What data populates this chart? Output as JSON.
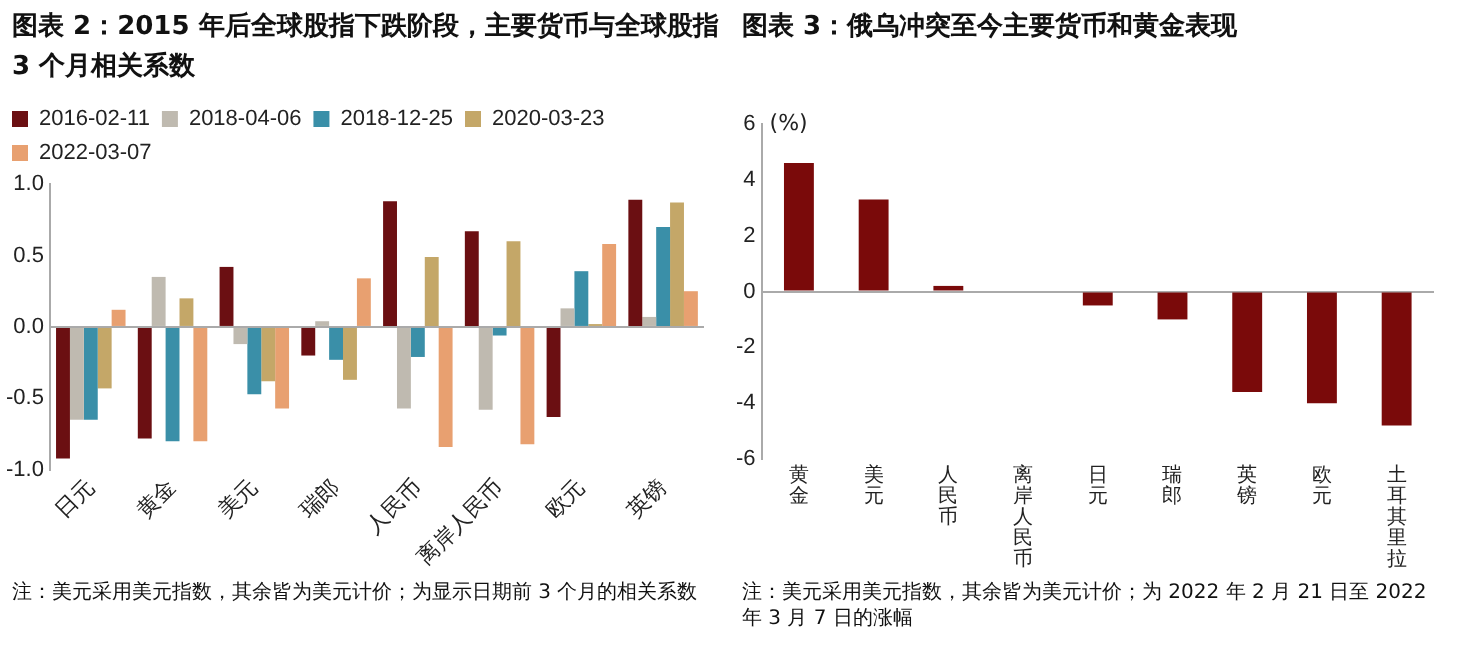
{
  "chart_data": [
    {
      "type": "bar",
      "title": "图表 2：2015 年后全球股指下跌阶段，主要货币与全球股指 3 个月相关系数",
      "categories": [
        "日元",
        "黄金",
        "美元",
        "瑞郎",
        "人民币",
        "离岸人民币",
        "欧元",
        "英镑"
      ],
      "series": [
        {
          "name": "2016-02-11",
          "color": "#6b0f12",
          "values": [
            -0.92,
            -0.78,
            0.42,
            -0.2,
            0.88,
            0.67,
            -0.63,
            0.89
          ]
        },
        {
          "name": "2018-04-06",
          "color": "#bfbab0",
          "values": [
            -0.65,
            0.35,
            -0.12,
            0.04,
            -0.57,
            -0.58,
            0.13,
            0.07
          ]
        },
        {
          "name": "2018-12-25",
          "color": "#3a8fa8",
          "values": [
            -0.65,
            -0.8,
            -0.47,
            -0.23,
            -0.21,
            -0.06,
            0.39,
            0.7
          ]
        },
        {
          "name": "2020-03-23",
          "color": "#c4a768",
          "values": [
            -0.43,
            0.2,
            -0.38,
            -0.37,
            0.49,
            0.6,
            0.02,
            0.87
          ]
        },
        {
          "name": "2022-03-07",
          "color": "#e8a070",
          "values": [
            0.12,
            -0.8,
            -0.57,
            0.34,
            -0.84,
            -0.82,
            0.58,
            0.25
          ]
        }
      ],
      "ylim": [
        -1,
        1
      ],
      "yticks": [
        {
          "value": -1,
          "label": "-1.0"
        },
        {
          "value": -0.5,
          "label": "-0.5"
        },
        {
          "value": 0,
          "label": "0.0"
        },
        {
          "value": 0.5,
          "label": "0.5"
        },
        {
          "value": 1,
          "label": "1.0"
        }
      ],
      "legend": "top",
      "annotations": [
        "注：美元采用美元指数，其余皆为美元计价；为显示日期前 3 个月的相关系数"
      ]
    },
    {
      "type": "bar",
      "title": "图表 3：俄乌冲突至今主要货币和黄金表现",
      "ylabel": "(%)",
      "categories": [
        "黄金",
        "美元",
        "人民币",
        "离岸人民币",
        "日元",
        "瑞郎",
        "英镑",
        "欧元",
        "土耳其里拉"
      ],
      "values": [
        4.6,
        3.3,
        0.2,
        0,
        -0.5,
        -1.0,
        -3.6,
        -4.0,
        -4.8
      ],
      "color": "#7a0a0a",
      "ylim": [
        -6,
        6
      ],
      "yticks": [
        -6,
        -4,
        -2,
        0,
        2,
        4,
        6
      ],
      "annotations": [
        "注：美元采用美元指数，其余皆为美元计价；为 2022 年 2 月 21 日至 2022 年 3 月 7 日的涨幅"
      ]
    }
  ]
}
